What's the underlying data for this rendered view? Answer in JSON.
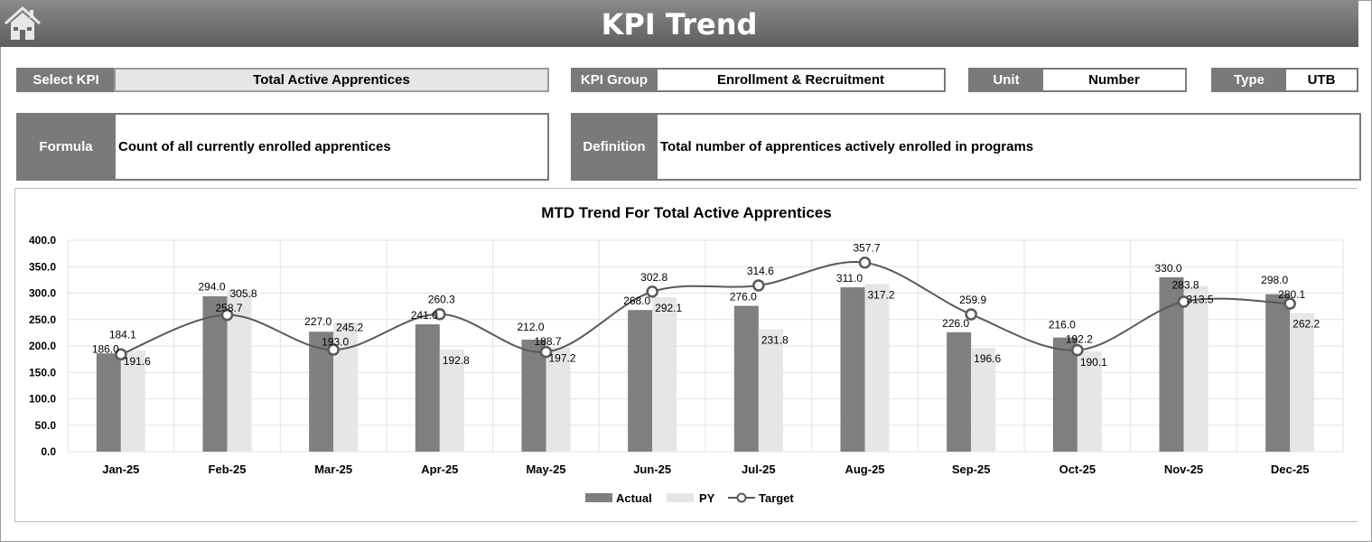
{
  "header": {
    "title": "KPI Trend",
    "home_icon": "home-icon"
  },
  "fields": {
    "select_kpi": {
      "label": "Select KPI",
      "value": "Total Active Apprentices"
    },
    "kpi_group": {
      "label": "KPI Group",
      "value": "Enrollment & Recruitment"
    },
    "unit": {
      "label": "Unit",
      "value": "Number"
    },
    "type": {
      "label": "Type",
      "value": "UTB"
    },
    "formula": {
      "label": "Formula",
      "value": "Count of all currently enrolled apprentices"
    },
    "definition": {
      "label": "Definition",
      "value": "Total number of apprentices actively enrolled in programs"
    }
  },
  "chart_data": {
    "type": "bar",
    "title": "MTD Trend For Total Active Apprentices",
    "categories": [
      "Jan-25",
      "Feb-25",
      "Mar-25",
      "Apr-25",
      "May-25",
      "Jun-25",
      "Jul-25",
      "Aug-25",
      "Sep-25",
      "Oct-25",
      "Nov-25",
      "Dec-25"
    ],
    "ylim": [
      0,
      400
    ],
    "yticks": [
      "0.0",
      "50.0",
      "100.0",
      "150.0",
      "200.0",
      "250.0",
      "300.0",
      "350.0",
      "400.0"
    ],
    "grid": true,
    "legend": "bottom",
    "series": [
      {
        "name": "Actual",
        "type": "bar",
        "color": "#7f7f7f",
        "values": [
          186.0,
          294.0,
          227.0,
          241.0,
          212.0,
          268.0,
          276.0,
          311.0,
          226.0,
          216.0,
          330.0,
          298.0
        ]
      },
      {
        "name": "PY",
        "type": "bar",
        "color": "#e6e6e6",
        "values": [
          191.6,
          305.8,
          245.2,
          192.8,
          197.2,
          292.1,
          231.8,
          317.2,
          196.6,
          190.1,
          313.5,
          262.2
        ]
      },
      {
        "name": "Target",
        "type": "line",
        "color": "#595959",
        "values": [
          184.1,
          258.7,
          193.0,
          260.3,
          188.7,
          302.8,
          314.6,
          357.7,
          259.9,
          192.2,
          283.8,
          280.1
        ]
      }
    ]
  }
}
